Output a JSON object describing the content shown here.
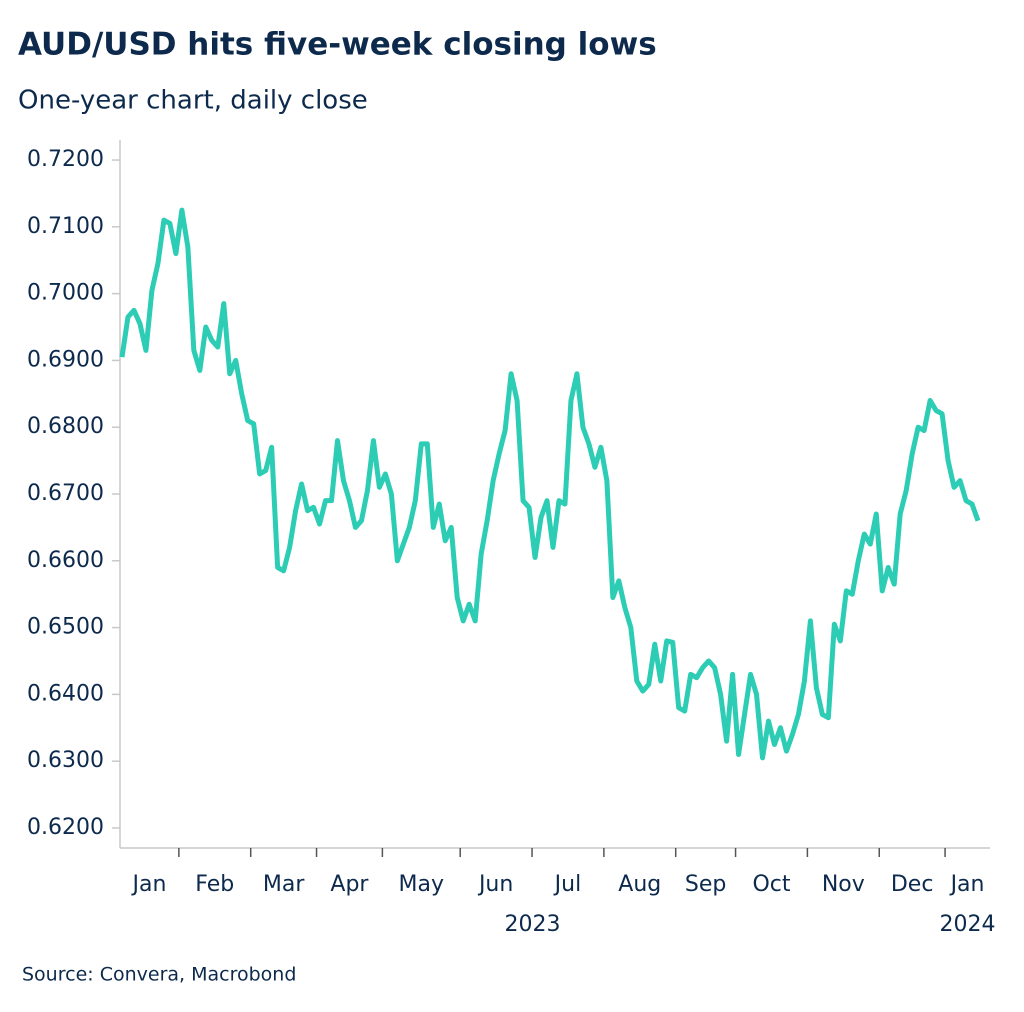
{
  "chart_data": {
    "type": "line",
    "title": "AUD/USD hits five-week closing lows",
    "subtitle": "One-year chart, daily close",
    "source": "Source: Convera, Macrobond",
    "color": "#2ccdb4",
    "ylim": [
      0.617,
      0.723
    ],
    "yticks": [
      {
        "value": 0.62,
        "label": "0.6200"
      },
      {
        "value": 0.63,
        "label": "0.6300"
      },
      {
        "value": 0.64,
        "label": "0.6400"
      },
      {
        "value": 0.65,
        "label": "0.6500"
      },
      {
        "value": 0.66,
        "label": "0.6600"
      },
      {
        "value": 0.67,
        "label": "0.6700"
      },
      {
        "value": 0.68,
        "label": "0.6800"
      },
      {
        "value": 0.69,
        "label": "0.6900"
      },
      {
        "value": 0.7,
        "label": "0.7000"
      },
      {
        "value": 0.71,
        "label": "0.7100"
      },
      {
        "value": 0.72,
        "label": "0.7200"
      }
    ],
    "periods": [
      {
        "year": "2023",
        "months": [
          {
            "name": "Jan",
            "values": [
              0.6905,
              0.6965,
              0.6975,
              0.6955,
              0.6915,
              0.7005,
              0.7045,
              0.711,
              0.7105,
              0.706
            ]
          },
          {
            "name": "Feb",
            "values": [
              0.7125,
              0.707,
              0.6915,
              0.6885,
              0.695,
              0.693,
              0.692,
              0.6985,
              0.688,
              0.69,
              0.685,
              0.681
            ]
          },
          {
            "name": "Mar",
            "values": [
              0.6805,
              0.673,
              0.6735,
              0.677,
              0.659,
              0.6585,
              0.662,
              0.6675,
              0.6715,
              0.6675,
              0.668
            ]
          },
          {
            "name": "Apr",
            "values": [
              0.6655,
              0.669,
              0.669,
              0.678,
              0.672,
              0.669,
              0.665,
              0.666,
              0.6705,
              0.678,
              0.671
            ]
          },
          {
            "name": "May",
            "values": [
              0.673,
              0.67,
              0.66,
              0.6625,
              0.665,
              0.669,
              0.6775,
              0.6775,
              0.665,
              0.6685,
              0.663,
              0.665,
              0.6545
            ]
          },
          {
            "name": "Jun",
            "values": [
              0.651,
              0.6535,
              0.651,
              0.661,
              0.666,
              0.672,
              0.676,
              0.6795,
              0.688,
              0.684,
              0.669,
              0.668
            ]
          },
          {
            "name": "Jul",
            "values": [
              0.6605,
              0.6665,
              0.669,
              0.662,
              0.669,
              0.6685,
              0.684,
              0.688,
              0.68,
              0.6775,
              0.674,
              0.677
            ]
          },
          {
            "name": "Aug",
            "values": [
              0.672,
              0.6545,
              0.657,
              0.653,
              0.65,
              0.642,
              0.6405,
              0.6415,
              0.6475,
              0.642,
              0.648,
              0.6478
            ]
          },
          {
            "name": "Sep",
            "values": [
              0.638,
              0.6375,
              0.643,
              0.6425,
              0.644,
              0.645,
              0.644,
              0.64,
              0.633,
              0.643
            ]
          },
          {
            "name": "Oct",
            "values": [
              0.631,
              0.637,
              0.643,
              0.64,
              0.6305,
              0.636,
              0.6325,
              0.635,
              0.6315,
              0.634,
              0.637,
              0.642
            ]
          },
          {
            "name": "Nov",
            "values": [
              0.651,
              0.641,
              0.637,
              0.6365,
              0.6505,
              0.648,
              0.6555,
              0.655,
              0.66,
              0.664,
              0.6625,
              0.667
            ]
          },
          {
            "name": "Dec",
            "values": [
              0.6555,
              0.659,
              0.6565,
              0.667,
              0.6705,
              0.676,
              0.68,
              0.6795,
              0.684,
              0.6825,
              0.682
            ]
          }
        ]
      },
      {
        "year": "2024",
        "months": [
          {
            "name": "Jan",
            "values": [
              0.675,
              0.671,
              0.672,
              0.669,
              0.6685,
              0.666
            ]
          }
        ]
      }
    ]
  }
}
